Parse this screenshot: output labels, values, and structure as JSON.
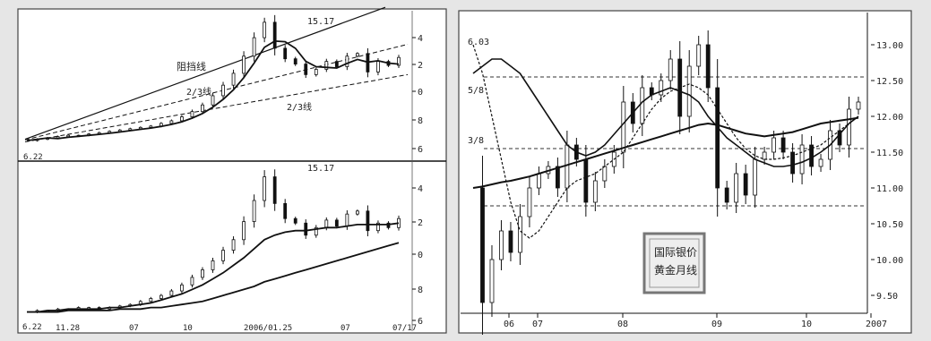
{
  "chart_data": [
    {
      "type": "line",
      "panel": "top-left",
      "annotations": {
        "peak": "15.17",
        "resistance": "阻挡线",
        "upper_channel": "2/3线",
        "lower_channel": "2/3线",
        "start_value": "6.22"
      },
      "y_ticks": [
        "4",
        "2",
        "0",
        "8",
        "6"
      ],
      "series": [
        {
          "values": [
            6.2,
            6.3,
            6.4,
            6.5,
            6.6,
            6.6,
            6.7,
            6.8,
            6.9,
            7.0,
            7.1,
            7.2,
            7.3,
            7.5,
            7.7,
            8.0,
            8.4,
            8.9,
            9.6,
            10.4,
            11.3,
            12.6,
            14.0,
            15.17,
            13.2,
            12.4,
            12.0,
            11.2,
            11.6,
            12.2,
            11.8,
            12.6,
            12.8,
            11.4,
            12.2,
            11.9,
            12.5
          ]
        }
      ]
    },
    {
      "type": "line",
      "panel": "bottom-left",
      "annotations": {
        "peak": "15.17",
        "start_value": "6.22"
      },
      "y_ticks": [
        "4",
        "2",
        "0",
        "8",
        "6"
      ],
      "x_ticks": [
        "11.28",
        "07",
        "10",
        "2006/01.25",
        "07",
        "07/17"
      ],
      "series": [
        {
          "values": [
            6.2,
            6.3,
            6.3,
            6.4,
            6.4,
            6.5,
            6.5,
            6.4,
            6.5,
            6.6,
            6.7,
            6.9,
            7.1,
            7.3,
            7.6,
            8.0,
            8.5,
            9.0,
            9.6,
            10.3,
            11.0,
            12.2,
            13.6,
            15.17,
            13.4,
            12.4,
            12.1,
            11.3,
            11.8,
            12.3,
            11.9,
            12.7,
            12.9,
            11.6,
            12.1,
            11.8,
            12.4
          ]
        },
        {
          "values": [
            6.2,
            6.2,
            6.3,
            6.3,
            6.4,
            6.4,
            6.4,
            6.4,
            6.5,
            6.5,
            6.6,
            6.7,
            6.8,
            7.0,
            7.2,
            7.4,
            7.7,
            8.0,
            8.4,
            8.8,
            9.3,
            9.8,
            10.4,
            11.0,
            11.3,
            11.5,
            11.6,
            11.6,
            11.7,
            11.8,
            11.8,
            11.9,
            12.0,
            12.0,
            12.0,
            12.0,
            12.1
          ]
        },
        {
          "values": [
            6.2,
            6.2,
            6.2,
            6.2,
            6.3,
            6.3,
            6.3,
            6.3,
            6.3,
            6.4,
            6.4,
            6.4,
            6.5,
            6.5,
            6.6,
            6.7,
            6.8,
            6.9,
            7.1,
            7.3,
            7.5,
            7.7,
            7.9,
            8.2,
            8.4,
            8.6,
            8.8,
            9.0,
            9.2,
            9.4,
            9.6,
            9.8,
            10.0,
            10.2,
            10.4,
            10.6,
            10.8
          ]
        }
      ]
    },
    {
      "type": "line",
      "panel": "right",
      "annotations": {
        "label_tl": "6.03",
        "label_l1": "5/8",
        "label_l2": "3/8",
        "stamp": [
          "国际",
          "黄金",
          "月线",
          "银价"
        ]
      },
      "y_ticks": [
        "13.00",
        "12.50",
        "12.00",
        "11.50",
        "11.00",
        "10.50",
        "10.00",
        "9.50"
      ],
      "ylim": [
        9.25,
        13.45
      ],
      "x_ticks": [
        "06",
        "07",
        "08",
        "09",
        "10",
        "2007"
      ],
      "dashed_levels": [
        12.55,
        11.55,
        10.75
      ],
      "series": [
        {
          "values": [
            11.0,
            9.4,
            10.0,
            10.4,
            10.1,
            10.6,
            11.0,
            11.2,
            11.3,
            11.0,
            11.6,
            11.4,
            10.8,
            11.1,
            11.3,
            11.5,
            12.2,
            11.9,
            12.4,
            12.3,
            12.5,
            12.8,
            12.0,
            12.7,
            13.0,
            12.4,
            11.0,
            10.8,
            11.2,
            10.9,
            11.4,
            11.5,
            11.7,
            11.5,
            11.2,
            11.6,
            11.3,
            11.4,
            11.8,
            11.6,
            12.1,
            12.2
          ]
        },
        {
          "values": [
            11.0,
            11.02,
            11.05,
            11.08,
            11.1,
            11.13,
            11.16,
            11.2,
            11.24,
            11.28,
            11.32,
            11.36,
            11.4,
            11.44,
            11.48,
            11.52,
            11.56,
            11.6,
            11.64,
            11.68,
            11.72,
            11.76,
            11.8,
            11.84,
            11.88,
            11.9,
            11.88,
            11.84,
            11.8,
            11.76,
            11.74,
            11.72,
            11.74,
            11.76,
            11.78,
            11.82,
            11.86,
            11.9,
            11.92,
            11.94,
            11.96,
            11.98
          ]
        },
        {
          "values": [
            12.6,
            12.7,
            12.8,
            12.8,
            12.7,
            12.6,
            12.4,
            12.2,
            12.0,
            11.8,
            11.6,
            11.5,
            11.45,
            11.5,
            11.6,
            11.75,
            11.9,
            12.05,
            12.2,
            12.3,
            12.35,
            12.4,
            12.35,
            12.3,
            12.2,
            12.0,
            11.85,
            11.7,
            11.6,
            11.5,
            11.4,
            11.35,
            11.3,
            11.3,
            11.32,
            11.36,
            11.42,
            11.5,
            11.6,
            11.75,
            11.9,
            12.0
          ]
        },
        {
          "values": [
            13.0,
            12.6,
            12.0,
            11.4,
            10.8,
            10.4,
            10.3,
            10.4,
            10.6,
            10.8,
            11.0,
            11.1,
            11.15,
            11.2,
            11.3,
            11.4,
            11.5,
            11.7,
            11.9,
            12.1,
            12.25,
            12.35,
            12.4,
            12.45,
            12.4,
            12.3,
            12.1,
            11.9,
            11.7,
            11.55,
            11.45,
            11.4,
            11.4,
            11.42,
            11.45,
            11.5,
            11.55,
            11.6,
            11.7,
            11.8,
            11.9,
            12.0
          ]
        }
      ]
    }
  ]
}
